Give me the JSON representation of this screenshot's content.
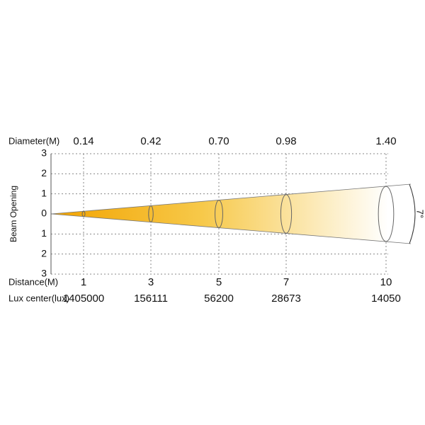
{
  "top_axis": {
    "label": "Diameter(M)"
  },
  "y_axis": {
    "label": "Beam Opening",
    "ticks": [
      "3",
      "2",
      "1",
      "0",
      "1",
      "2",
      "3"
    ]
  },
  "bottom_axis": {
    "label": "Distance(M)"
  },
  "lux_row": {
    "label": "Lux center(lux)"
  },
  "columns": [
    {
      "distance": "1",
      "diameter": "0.14",
      "lux": "1405000"
    },
    {
      "distance": "3",
      "diameter": "0.42",
      "lux": "156111"
    },
    {
      "distance": "5",
      "diameter": "0.70",
      "lux": "56200"
    },
    {
      "distance": "7",
      "diameter": "0.98",
      "lux": "28673"
    },
    {
      "distance": "10",
      "diameter": "1.40",
      "lux": "14050"
    }
  ],
  "angle": "7°"
}
